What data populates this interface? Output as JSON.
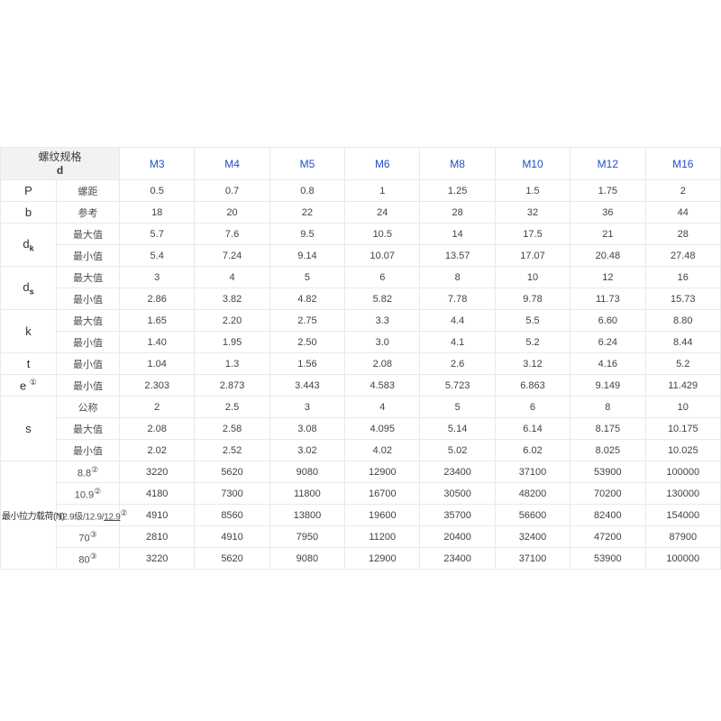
{
  "table": {
    "colors": {
      "header_bg": "#f2f2f2",
      "column_header_blue": "#1f4fc8",
      "border": "#e9e9e9",
      "body_text": "#424242"
    },
    "corner": {
      "line1": "螺纹规格",
      "line2": "d"
    },
    "columns": [
      "M3",
      "M4",
      "M5",
      "M6",
      "M8",
      "M10",
      "M12",
      "M16"
    ],
    "groups": [
      {
        "label": "P",
        "rows": [
          {
            "sub": "螺距",
            "values": [
              "0.5",
              "0.7",
              "0.8",
              "1",
              "1.25",
              "1.5",
              "1.75",
              "2"
            ]
          }
        ]
      },
      {
        "label": "b",
        "rows": [
          {
            "sub": "参考",
            "values": [
              "18",
              "20",
              "22",
              "24",
              "28",
              "32",
              "36",
              "44"
            ]
          }
        ]
      },
      {
        "label": "d",
        "label_sub": "k",
        "rows": [
          {
            "sub": "最大值",
            "values": [
              "5.7",
              "7.6",
              "9.5",
              "10.5",
              "14",
              "17.5",
              "21",
              "28"
            ]
          },
          {
            "sub": "最小值",
            "values": [
              "5.4",
              "7.24",
              "9.14",
              "10.07",
              "13.57",
              "17.07",
              "20.48",
              "27.48"
            ]
          }
        ]
      },
      {
        "label": "d",
        "label_sub": "s",
        "rows": [
          {
            "sub": "最大值",
            "values": [
              "3",
              "4",
              "5",
              "6",
              "8",
              "10",
              "12",
              "16"
            ]
          },
          {
            "sub": "最小值",
            "values": [
              "2.86",
              "3.82",
              "4.82",
              "5.82",
              "7.78",
              "9.78",
              "11.73",
              "15.73"
            ]
          }
        ]
      },
      {
        "label": "k",
        "rows": [
          {
            "sub": "最大值",
            "values": [
              "1.65",
              "2.20",
              "2.75",
              "3.3",
              "4.4",
              "5.5",
              "6.60",
              "8.80"
            ]
          },
          {
            "sub": "最小值",
            "values": [
              "1.40",
              "1.95",
              "2.50",
              "3.0",
              "4.1",
              "5.2",
              "6.24",
              "8.44"
            ]
          }
        ]
      },
      {
        "label": "t",
        "rows": [
          {
            "sub": "最小值",
            "values": [
              "1.04",
              "1.3",
              "1.56",
              "2.08",
              "2.6",
              "3.12",
              "4.16",
              "5.2"
            ]
          }
        ]
      },
      {
        "label": "e",
        "label_sup": "①",
        "rows": [
          {
            "sub": "最小值",
            "values": [
              "2.303",
              "2.873",
              "3.443",
              "4.583",
              "5.723",
              "6.863",
              "9.149",
              "11.429"
            ]
          }
        ]
      },
      {
        "label": "s",
        "rows": [
          {
            "sub": "公称",
            "values": [
              "2",
              "2.5",
              "3",
              "4",
              "5",
              "6",
              "8",
              "10"
            ]
          },
          {
            "sub": "最大值",
            "values": [
              "2.08",
              "2.58",
              "3.08",
              "4.095",
              "5.14",
              "6.14",
              "8.175",
              "10.175"
            ]
          },
          {
            "sub": "最小值",
            "values": [
              "2.02",
              "2.52",
              "3.02",
              "4.02",
              "5.02",
              "6.02",
              "8.025",
              "10.025"
            ]
          }
        ]
      },
      {
        "label": "最小拉力载荷(N)",
        "rows": [
          {
            "sub": "8.8",
            "sub_sup": "②",
            "values": [
              "3220",
              "5620",
              "9080",
              "12900",
              "23400",
              "37100",
              "53900",
              "100000"
            ]
          },
          {
            "sub": "10.9",
            "sub_sup": "②",
            "values": [
              "4180",
              "7300",
              "11800",
              "16700",
              "30500",
              "48200",
              "70200",
              "130000"
            ]
          },
          {
            "sub": "12.9级/12.9/",
            "sub_underline": "12.9",
            "sub_sup": "②",
            "values": [
              "4910",
              "8560",
              "13800",
              "19600",
              "35700",
              "56600",
              "82400",
              "154000"
            ]
          },
          {
            "sub": "70",
            "sub_sup": "③",
            "values": [
              "2810",
              "4910",
              "7950",
              "11200",
              "20400",
              "32400",
              "47200",
              "87900"
            ]
          },
          {
            "sub": "80",
            "sub_sup": "③",
            "values": [
              "3220",
              "5620",
              "9080",
              "12900",
              "23400",
              "37100",
              "53900",
              "100000"
            ]
          }
        ]
      }
    ]
  }
}
